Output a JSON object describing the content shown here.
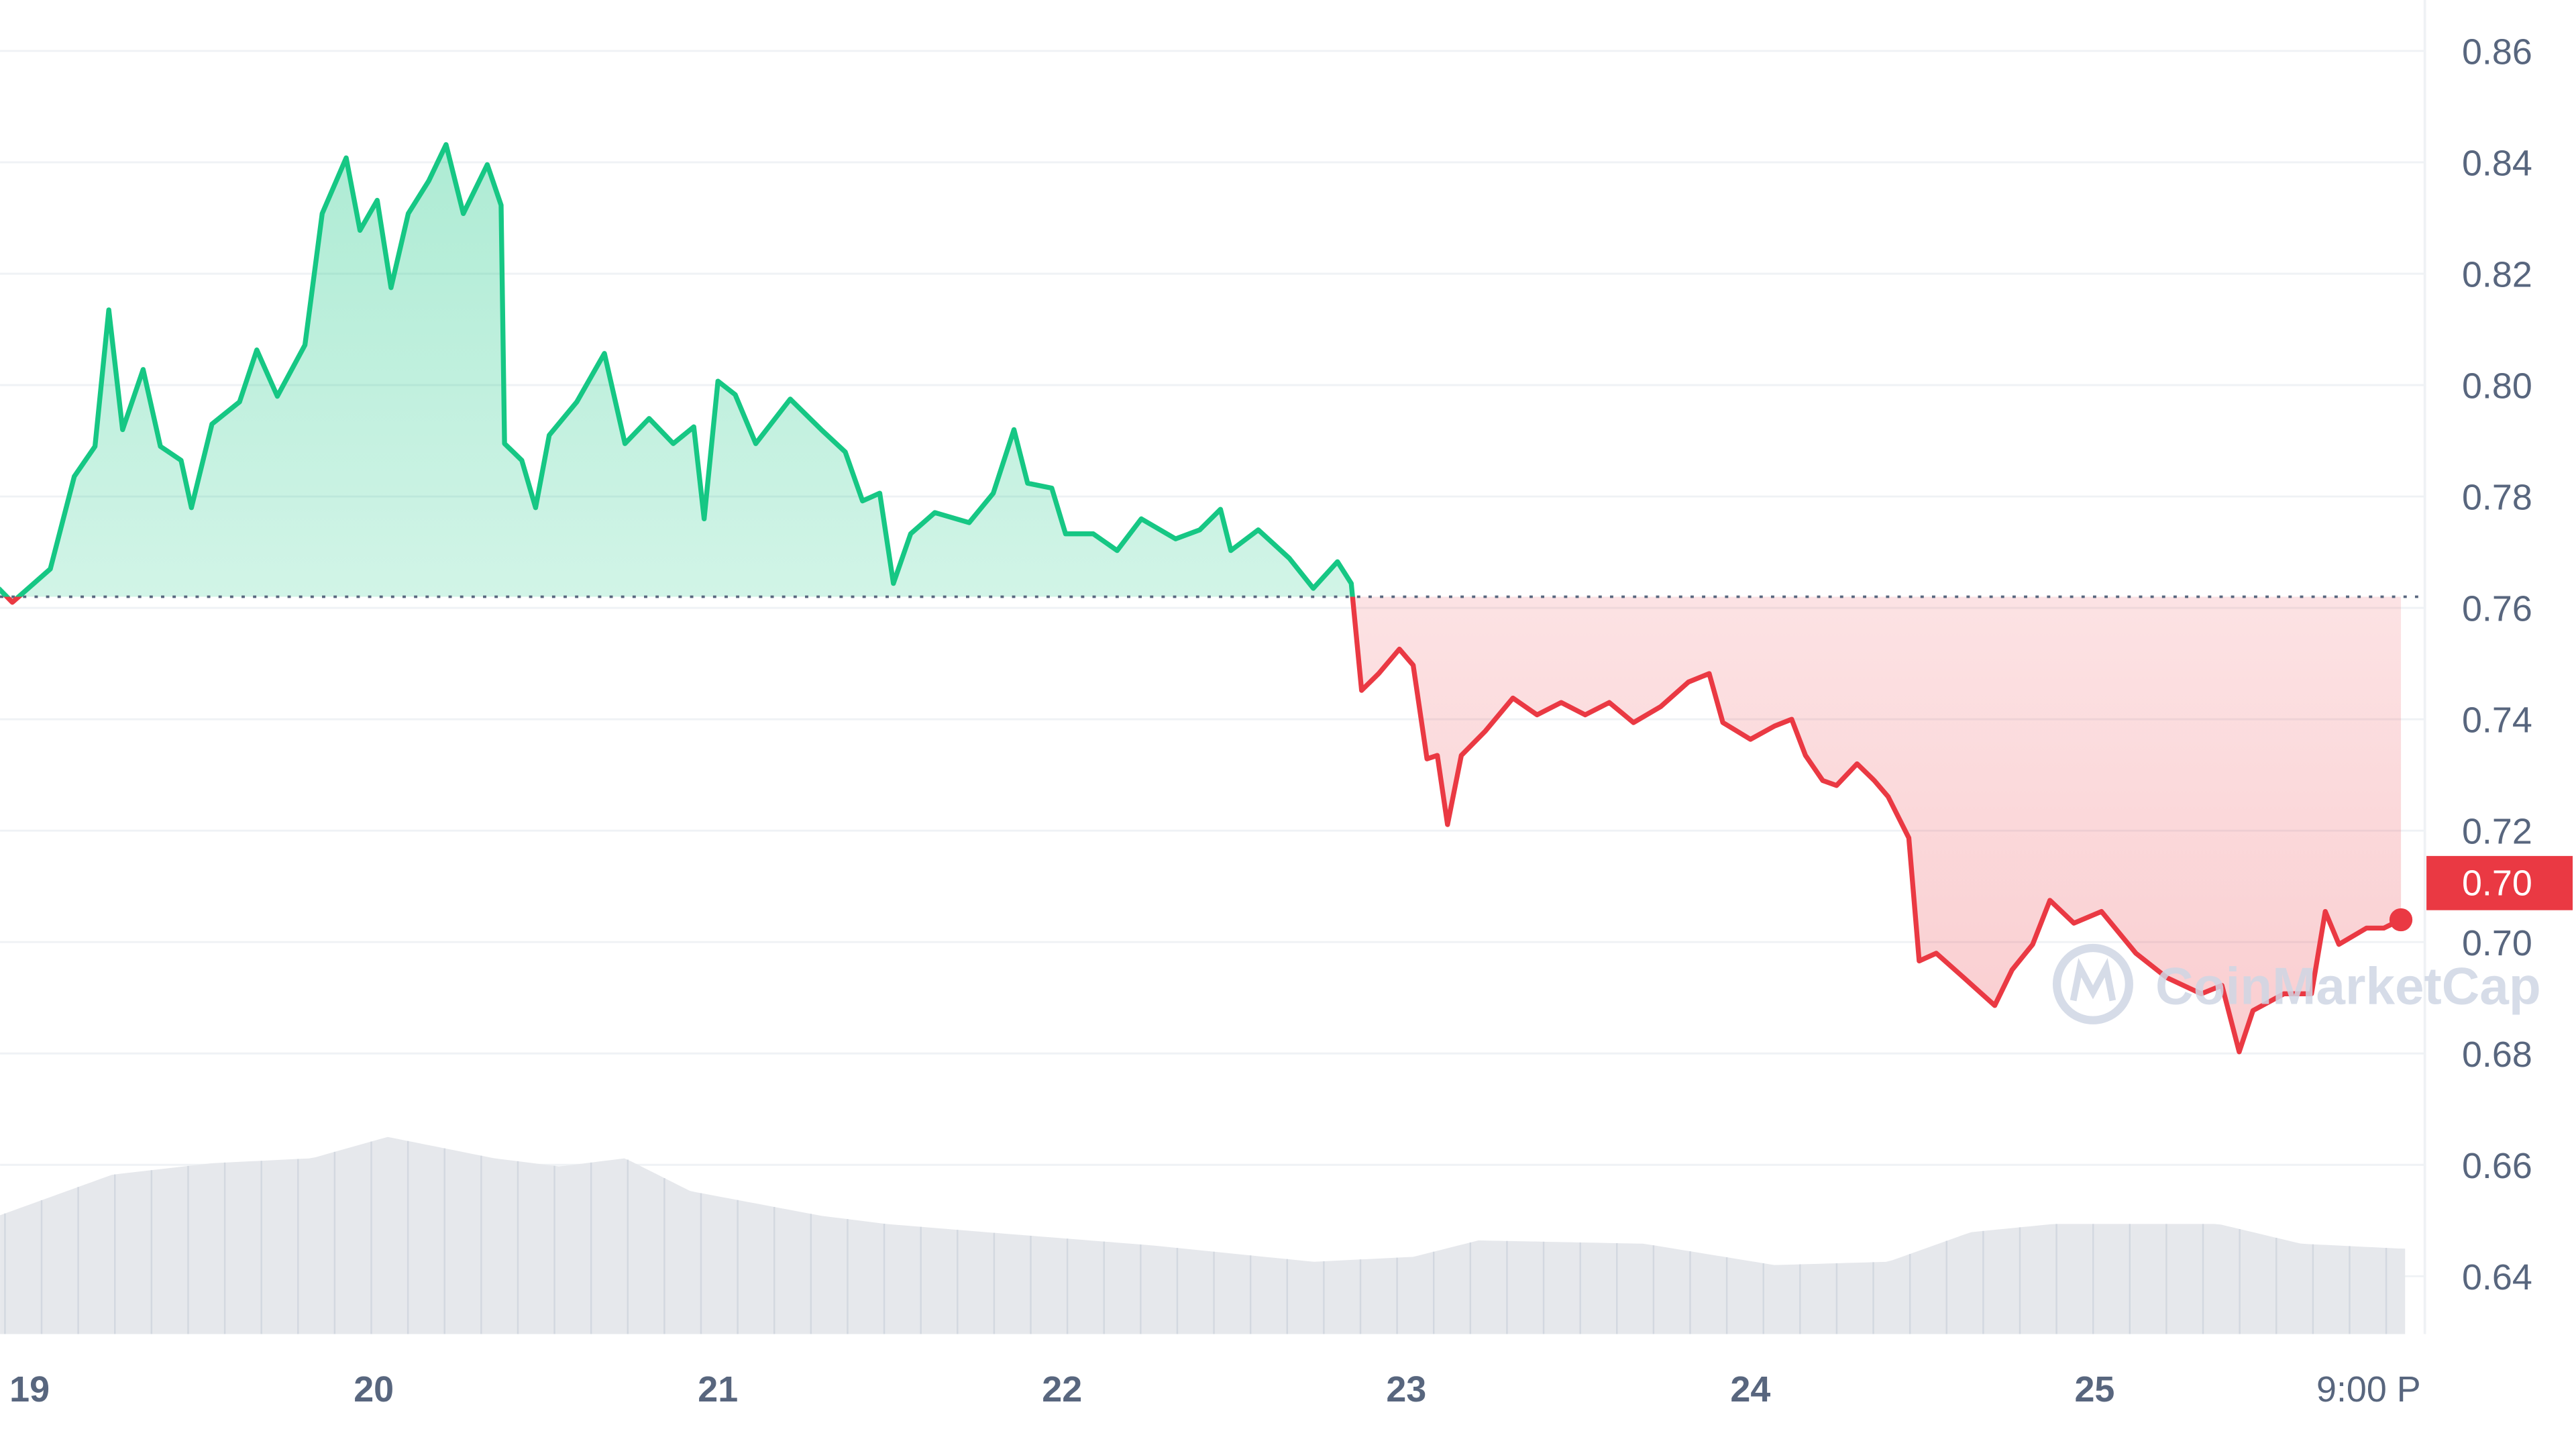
{
  "chart_data": {
    "type": "line",
    "xlabel": "",
    "ylabel": "",
    "ylim": [
      0.63,
      0.865
    ],
    "xlim": [
      18.91,
      25.89
    ],
    "grid": true,
    "y_ticks": [
      "0.86",
      "0.84",
      "0.82",
      "0.80",
      "0.78",
      "0.76",
      "0.74",
      "0.72",
      "0.70",
      "0.68",
      "0.66",
      "0.64"
    ],
    "x_ticks": [
      {
        "day": 19,
        "label": "19"
      },
      {
        "day": 20,
        "label": "20"
      },
      {
        "day": 21,
        "label": "21"
      },
      {
        "day": 22,
        "label": "22"
      },
      {
        "day": 23,
        "label": "23"
      },
      {
        "day": 24,
        "label": "24"
      },
      {
        "day": 25,
        "label": "25"
      },
      {
        "day": 25.79,
        "label": "9:00 P"
      }
    ],
    "baseline": 0.762,
    "current_price_label": "0.70",
    "colors": {
      "up": "#16c784",
      "down": "#ea3943",
      "grid": "#eff2f5",
      "volume": "#e6e8ec",
      "axis_text": "#58667e",
      "watermark": "#cfd6e4"
    },
    "watermark": "CoinMarketCap",
    "series": [
      {
        "x": [
          18.91,
          18.95,
          19.06,
          19.13,
          19.19,
          19.23,
          19.27,
          19.33,
          19.38,
          19.44,
          19.47,
          19.53,
          19.61,
          19.66,
          19.72,
          19.8,
          19.85,
          19.92,
          19.96,
          20.01,
          20.05,
          20.1,
          20.16,
          20.21,
          20.26,
          20.33,
          20.37,
          20.38,
          20.43,
          20.47,
          20.51,
          20.59,
          20.67,
          20.73,
          20.8,
          20.87,
          20.93,
          20.96,
          21.0,
          21.05,
          21.11,
          21.21,
          21.3,
          21.37,
          21.42,
          21.47,
          21.51,
          21.56,
          21.63,
          21.73,
          21.8,
          21.86,
          21.9,
          21.97,
          22.01,
          22.09,
          22.16,
          22.23,
          22.33,
          22.4,
          22.46,
          22.49,
          22.57,
          22.66,
          22.73,
          22.8,
          22.84,
          22.87,
          22.92,
          22.98,
          23.02,
          23.06,
          23.09,
          23.12,
          23.16,
          23.23,
          23.31,
          23.38,
          23.45,
          23.52,
          23.59,
          23.66,
          23.74,
          23.82,
          23.88,
          23.92,
          24.0,
          24.07,
          24.12,
          24.16,
          24.21,
          24.25,
          24.31,
          24.36,
          24.4,
          24.46,
          24.49,
          24.54,
          24.62,
          24.71,
          24.76,
          24.82,
          24.87,
          24.94,
          25.02,
          25.12,
          25.21,
          25.31,
          25.37,
          25.42,
          25.46,
          25.55,
          25.63,
          25.67,
          25.71,
          25.79,
          25.84,
          25.89
        ],
        "y": [
          0.7635,
          0.761,
          0.767,
          0.7836,
          0.789,
          0.8135,
          0.792,
          0.8028,
          0.789,
          0.7865,
          0.778,
          0.793,
          0.797,
          0.8063,
          0.798,
          0.8072,
          0.8308,
          0.8408,
          0.8278,
          0.8332,
          0.8175,
          0.8308,
          0.8367,
          0.8432,
          0.8308,
          0.8396,
          0.8323,
          0.7895,
          0.7865,
          0.778,
          0.791,
          0.797,
          0.8057,
          0.7895,
          0.794,
          0.7895,
          0.7925,
          0.776,
          0.8007,
          0.7983,
          0.7895,
          0.7975,
          0.792,
          0.788,
          0.7792,
          0.7806,
          0.7644,
          0.7733,
          0.7771,
          0.7753,
          0.7806,
          0.792,
          0.7824,
          0.7815,
          0.7733,
          0.7733,
          0.7703,
          0.776,
          0.7724,
          0.774,
          0.7777,
          0.7703,
          0.774,
          0.7689,
          0.7635,
          0.7683,
          0.7644,
          0.7452,
          0.7482,
          0.7526,
          0.7497,
          0.7329,
          0.7335,
          0.7211,
          0.7335,
          0.7379,
          0.7438,
          0.7408,
          0.743,
          0.7408,
          0.743,
          0.7394,
          0.7423,
          0.7467,
          0.7482,
          0.7394,
          0.7364,
          0.7388,
          0.74,
          0.7335,
          0.729,
          0.7281,
          0.732,
          0.729,
          0.7261,
          0.7187,
          0.6966,
          0.698,
          0.6936,
          0.6886,
          0.695,
          0.6996,
          0.7075,
          0.7034,
          0.7055,
          0.698,
          0.6936,
          0.6907,
          0.6922,
          0.6803,
          0.6877,
          0.6907,
          0.6907,
          0.7055,
          0.6996,
          0.7025,
          0.7025,
          0.704
        ]
      },
      {
        "kind": "volume",
        "x": [
          18.91,
          19.24,
          19.53,
          19.82,
          20.04,
          20.35,
          20.54,
          20.73,
          20.92,
          21.3,
          21.49,
          21.78,
          22.26,
          22.73,
          23.02,
          23.21,
          23.69,
          24.07,
          24.4,
          24.64,
          24.88,
          25.36,
          25.6,
          25.89
        ],
        "y": [
          72,
          97,
          104,
          107,
          120,
          107,
          102,
          107,
          87,
          72,
          67,
          62,
          54,
          44,
          47,
          57,
          55,
          42,
          44,
          62,
          67,
          67,
          55,
          52
        ]
      }
    ]
  }
}
